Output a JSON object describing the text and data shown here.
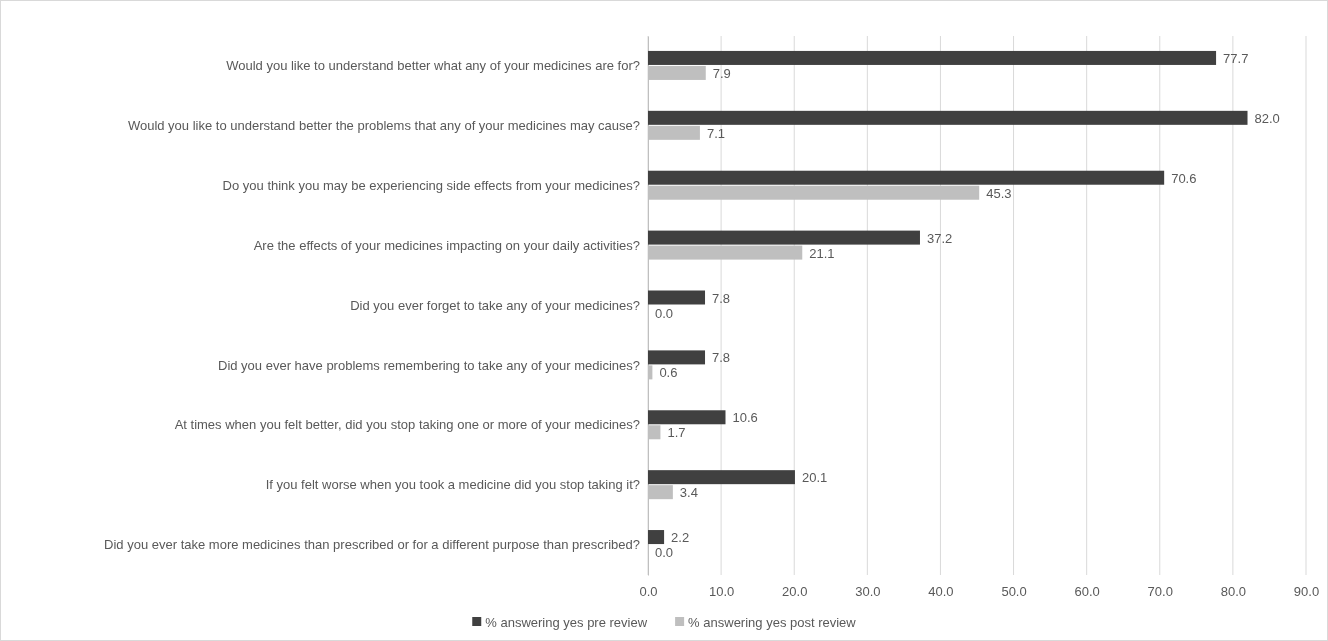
{
  "chart_data": {
    "type": "bar",
    "orientation": "horizontal",
    "categories": [
      "Would you like to understand better what any of your medicines are for?",
      "Would you like to understand better the problems that any of your medicines may cause?",
      "Do you think you may be experiencing side effects from your medicines?",
      "Are the effects of your medicines impacting on your daily activities?",
      "Did you ever forget to take any of your medicines?",
      "Did you ever have problems remembering to take any of your medicines?",
      "At times when you felt better, did you stop taking one or more of your medicines?",
      "If you felt worse when you took a medicine did you stop taking it?",
      "Did you ever take more medicines than prescribed or for a different purpose than prescribed?"
    ],
    "series": [
      {
        "name": "% answering yes pre review",
        "color": "#404040",
        "values": [
          77.7,
          82.0,
          70.6,
          37.2,
          7.8,
          7.8,
          10.6,
          20.1,
          2.2
        ],
        "value_labels": [
          "77.7",
          "82.0",
          "70.6",
          "37.2",
          "7.8",
          "7.8",
          "10.6",
          "20.1",
          "2.2"
        ]
      },
      {
        "name": "% answering yes post review",
        "color": "#bfbfbf",
        "values": [
          7.9,
          7.1,
          45.3,
          21.1,
          0.0,
          0.6,
          1.7,
          3.4,
          0.0
        ],
        "value_labels": [
          "7.9",
          "7.1",
          "45.3",
          "21.1",
          "0.0",
          "0.6",
          "1.7",
          "3.4",
          "0.0"
        ]
      }
    ],
    "xlim": [
      0,
      90
    ],
    "xticks": [
      {
        "value": 0,
        "label": "0.0"
      },
      {
        "value": 10,
        "label": "10.0"
      },
      {
        "value": 20,
        "label": "20.0"
      },
      {
        "value": 30,
        "label": "30.0"
      },
      {
        "value": 40,
        "label": "40.0"
      },
      {
        "value": 50,
        "label": "50.0"
      },
      {
        "value": 60,
        "label": "60.0"
      },
      {
        "value": 70,
        "label": "70.0"
      },
      {
        "value": 80,
        "label": "80.0"
      },
      {
        "value": 90,
        "label": "90.0"
      }
    ],
    "grid": "x",
    "legend": "bottom"
  }
}
